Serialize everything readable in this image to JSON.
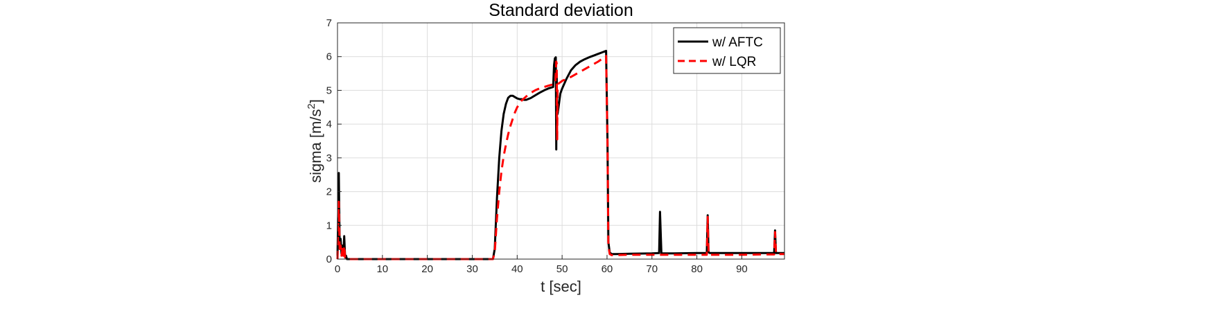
{
  "chart_data": {
    "type": "line",
    "title": "Standard deviation",
    "xlabel": "t [sec]",
    "ylabel": "sigma [m/s",
    "ylabel_superscript": "2",
    "ylabel_suffix": "]",
    "xlim": [
      0,
      99.5
    ],
    "ylim": [
      0,
      7
    ],
    "xticks": [
      0,
      10,
      20,
      30,
      40,
      50,
      60,
      70,
      80,
      90
    ],
    "yticks": [
      0,
      1,
      2,
      3,
      4,
      5,
      6,
      7
    ],
    "grid": true,
    "legend_position": "top-right",
    "series": [
      {
        "name": "w/ AFTC",
        "color": "#000000",
        "dash": "solid",
        "x": [
          0,
          0.3,
          0.5,
          0.7,
          0.9,
          1.1,
          1.3,
          1.5,
          1.7,
          1.9,
          2.1,
          2.5,
          5,
          10,
          20,
          30,
          34.6,
          35.0,
          35.5,
          36.0,
          36.5,
          37.0,
          37.5,
          38.0,
          38.5,
          39.0,
          39.5,
          40.0,
          40.5,
          41.0,
          41.5,
          42.0,
          43.0,
          44.0,
          45.0,
          46.0,
          47.0,
          48.0,
          48.2,
          48.4,
          48.6,
          48.7,
          48.8,
          48.9,
          49.0,
          49.3,
          49.6,
          50.0,
          51.0,
          52.0,
          53.0,
          54.0,
          55.0,
          56.0,
          57.0,
          58.0,
          59.0,
          59.8,
          60.1,
          60.3,
          60.6,
          61.0,
          62,
          65,
          70,
          71.6,
          71.8,
          72.1,
          72.4,
          75,
          80,
          82.2,
          82.4,
          82.6,
          82.9,
          85,
          90,
          95,
          97.2,
          97.4,
          97.6,
          97.9,
          99.5
        ],
        "y": [
          0.1,
          2.55,
          0.3,
          0.6,
          0.15,
          0.4,
          0.1,
          0.68,
          0.05,
          0.1,
          0.0,
          0.0,
          0.0,
          0.0,
          0.0,
          0.0,
          0.0,
          0.3,
          1.8,
          3.0,
          3.8,
          4.3,
          4.6,
          4.78,
          4.84,
          4.84,
          4.8,
          4.76,
          4.74,
          4.74,
          4.72,
          4.72,
          4.77,
          4.85,
          4.93,
          5.0,
          5.06,
          5.1,
          5.75,
          5.95,
          5.98,
          3.25,
          5.5,
          4.3,
          4.3,
          4.6,
          4.9,
          5.05,
          5.35,
          5.6,
          5.75,
          5.85,
          5.92,
          5.98,
          6.03,
          6.08,
          6.13,
          6.17,
          3.5,
          0.5,
          0.2,
          0.15,
          0.15,
          0.16,
          0.17,
          0.18,
          1.4,
          0.17,
          0.17,
          0.17,
          0.18,
          0.18,
          1.3,
          0.2,
          0.18,
          0.18,
          0.18,
          0.18,
          0.18,
          0.85,
          0.18,
          0.18,
          0.18
        ]
      },
      {
        "name": "w/ LQR",
        "color": "#ff0000",
        "dash": "dashed",
        "x": [
          0,
          0.3,
          0.5,
          0.7,
          0.9,
          1.1,
          1.3,
          1.5,
          1.7,
          1.9,
          2.1,
          2.5,
          5,
          10,
          20,
          30,
          34.6,
          35.0,
          35.5,
          36.0,
          36.5,
          37.0,
          37.5,
          38.0,
          38.5,
          39.0,
          39.5,
          40.0,
          40.5,
          41.0,
          42.0,
          43.0,
          44.0,
          45.0,
          46.0,
          47.0,
          48.0,
          48.5,
          48.7,
          48.8,
          48.9,
          49.0,
          49.2,
          49.4,
          49.7,
          50.0,
          52.0,
          54.0,
          56.0,
          58.0,
          59.8,
          60.1,
          60.3,
          60.6,
          61.0,
          62,
          65,
          70,
          75,
          80,
          82.2,
          82.4,
          82.6,
          82.9,
          85,
          90,
          95,
          97.2,
          97.4,
          97.6,
          97.9,
          99.5
        ],
        "y": [
          0.0,
          1.7,
          0.2,
          0.4,
          0.1,
          0.3,
          0.1,
          0.4,
          0.05,
          0.05,
          0.0,
          0.0,
          0.0,
          0.0,
          0.0,
          0.0,
          0.0,
          0.2,
          1.2,
          2.0,
          2.6,
          3.05,
          3.4,
          3.7,
          3.95,
          4.15,
          4.35,
          4.5,
          4.6,
          4.7,
          4.82,
          4.92,
          5.0,
          5.06,
          5.1,
          5.14,
          5.18,
          5.2,
          5.85,
          5.8,
          3.55,
          5.15,
          5.2,
          5.22,
          5.25,
          5.28,
          5.4,
          5.55,
          5.7,
          5.85,
          6.02,
          3.5,
          0.4,
          0.15,
          0.12,
          0.12,
          0.13,
          0.13,
          0.13,
          0.13,
          0.13,
          1.25,
          0.14,
          0.13,
          0.13,
          0.13,
          0.14,
          0.14,
          0.8,
          0.15,
          0.15,
          0.15
        ]
      }
    ]
  }
}
